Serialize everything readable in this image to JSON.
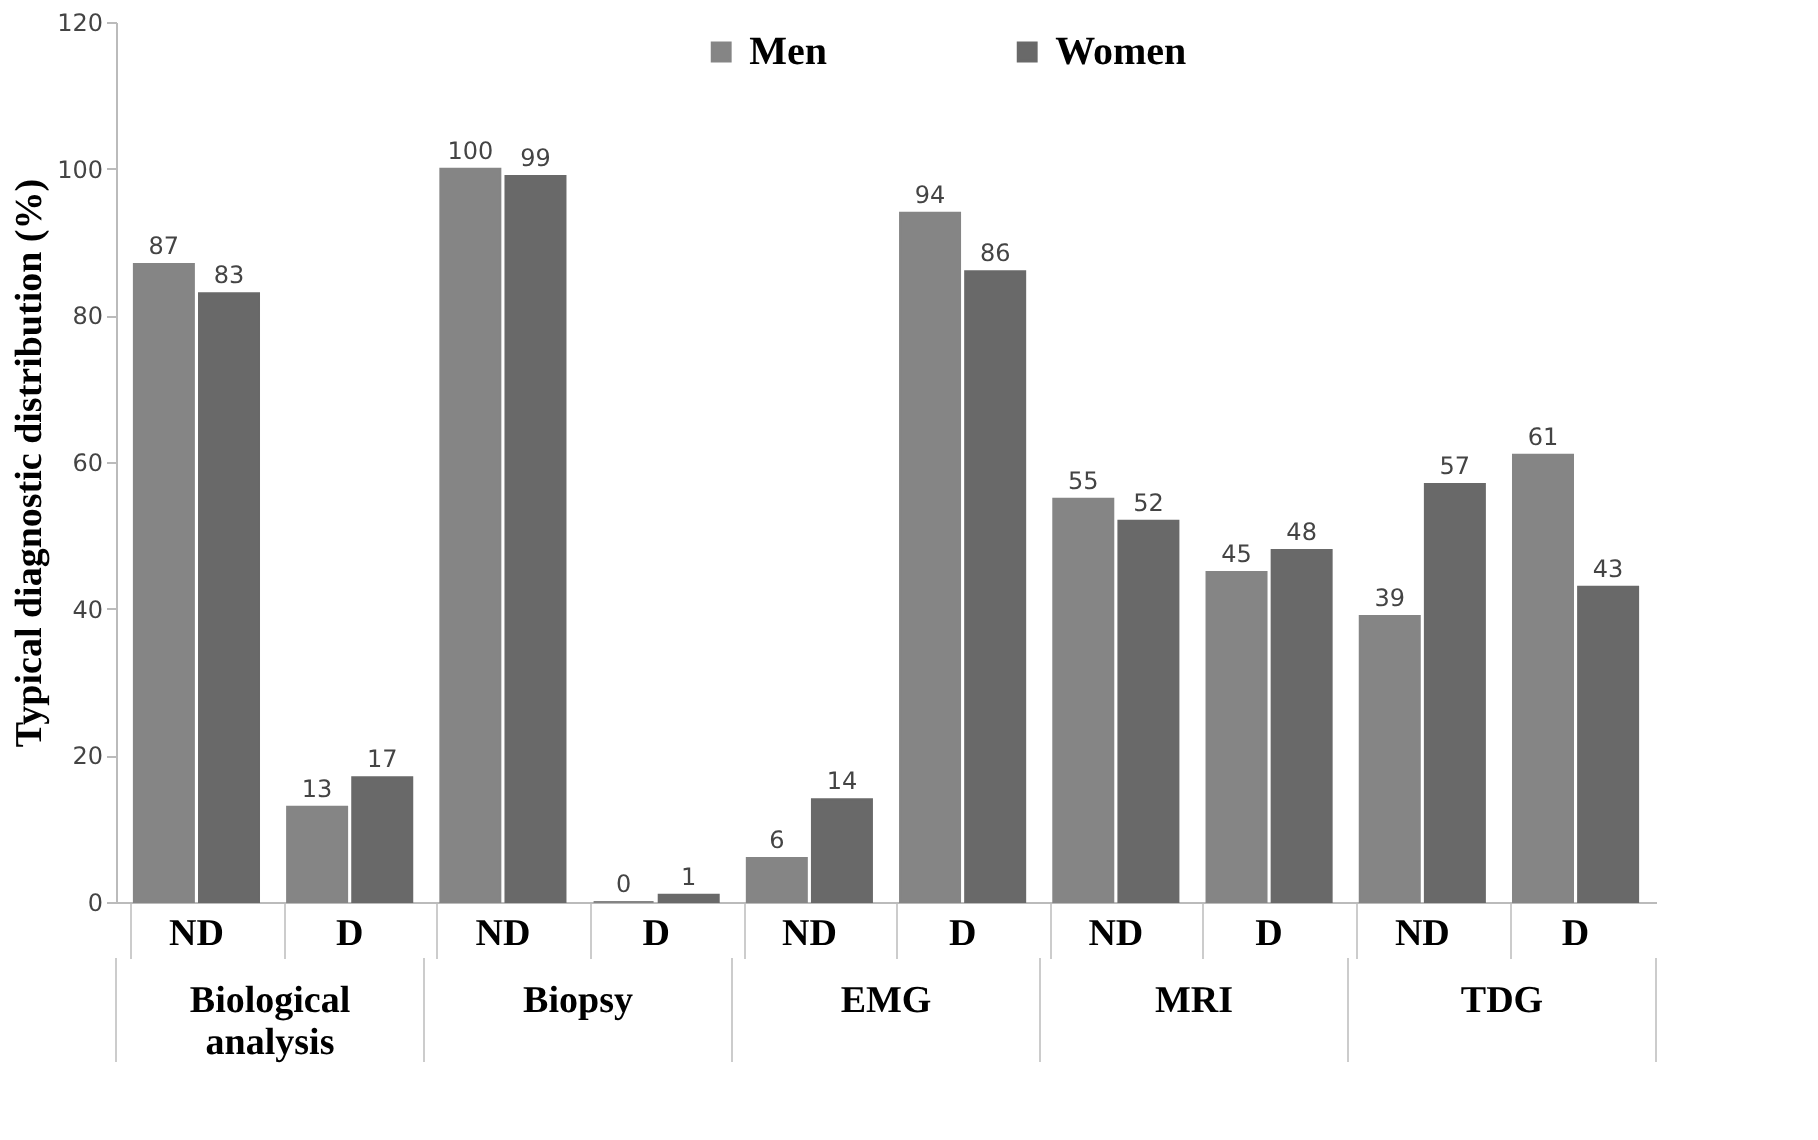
{
  "chart_data": {
    "type": "bar",
    "ylabel": "Typical diagnostic distribution (%)",
    "categories": [
      "ND",
      "D",
      "ND",
      "D",
      "ND",
      "D",
      "ND",
      "D",
      "ND",
      "D"
    ],
    "annotations": [
      "Biological analysis",
      "Biopsy",
      "EMG",
      "MRI",
      "TDG"
    ],
    "series": [
      {
        "name": "Men",
        "color": "#858585",
        "values": [
          87,
          13,
          100,
          0,
          6,
          94,
          55,
          45,
          39,
          61
        ]
      },
      {
        "name": "Women",
        "color": "#696969",
        "values": [
          83,
          17,
          99,
          1,
          14,
          86,
          52,
          48,
          57,
          43
        ]
      }
    ],
    "ylim": [
      0,
      120
    ],
    "yticks": [
      0,
      20,
      40,
      60,
      80,
      100,
      120
    ],
    "grid": false,
    "legend": "top",
    "data_labels": true
  }
}
